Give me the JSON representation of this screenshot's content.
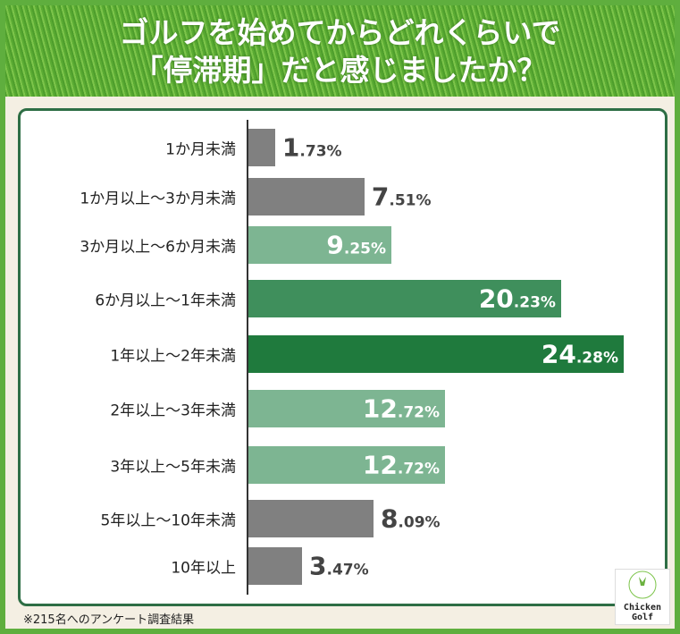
{
  "title_lines": [
    "ゴルフを始めてからどれくらいで",
    "「停滞期」だと感じましたか？"
  ],
  "footer": "※215名へのアンケート調査結果",
  "logo": {
    "line1": "Chicken",
    "line2": "Golf"
  },
  "chart_data": {
    "type": "bar",
    "orientation": "horizontal",
    "categories": [
      "1か月未満",
      "1か月以上〜3か月未満",
      "3か月以上〜6か月未満",
      "6か月以上〜1年未満",
      "1年以上〜2年未満",
      "2年以上〜3年未満",
      "3年以上〜5年未満",
      "5年以上〜10年未満",
      "10年以上"
    ],
    "values": [
      1.73,
      7.51,
      9.25,
      20.23,
      24.28,
      12.72,
      12.72,
      8.09,
      3.47
    ],
    "labels": [
      [
        "1",
        ".73%"
      ],
      [
        "7",
        ".51%"
      ],
      [
        "9",
        ".25%"
      ],
      [
        "20",
        ".23%"
      ],
      [
        "24",
        ".28%"
      ],
      [
        "12",
        ".72%"
      ],
      [
        "12",
        ".72%"
      ],
      [
        "8",
        ".09%"
      ],
      [
        "3",
        ".47%"
      ]
    ],
    "unit": "%",
    "bar_colors": [
      "#808080",
      "#808080",
      "#7db592",
      "#3f8f5c",
      "#1f7a3d",
      "#7db592",
      "#7db592",
      "#808080",
      "#808080"
    ],
    "grid": false
  }
}
